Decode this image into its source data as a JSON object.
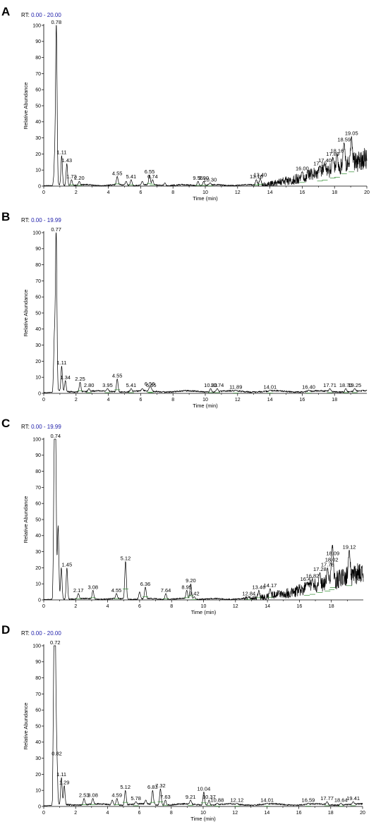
{
  "chart_data": [
    {
      "type": "line",
      "panel_label": "A",
      "rt_prefix": "RT: ",
      "rt_range": "0.00 - 20.00",
      "xlabel": "Time (min)",
      "ylabel": "Relative Abundance",
      "xlim": [
        0,
        20
      ],
      "ylim": [
        0,
        100
      ],
      "x_ticks": [
        0,
        2,
        4,
        6,
        8,
        10,
        12,
        14,
        16,
        18,
        20
      ],
      "y_ticks": [
        0,
        10,
        20,
        30,
        40,
        50,
        60,
        70,
        80,
        90,
        100
      ],
      "baseline": {
        "type": "rising",
        "start": 13,
        "level": 17
      },
      "peaks": [
        {
          "x": 0.68,
          "y": 17
        },
        {
          "x": 0.78,
          "y": 100
        },
        {
          "x": 1.11,
          "y": 19
        },
        {
          "x": 1.43,
          "y": 14
        },
        {
          "x": 1.72,
          "y": 4
        },
        {
          "x": 2.2,
          "y": 3
        },
        {
          "x": 4.55,
          "y": 6
        },
        {
          "x": 5.1,
          "y": 3
        },
        {
          "x": 5.41,
          "y": 4
        },
        {
          "x": 6.1,
          "y": 3
        },
        {
          "x": 6.55,
          "y": 7
        },
        {
          "x": 6.74,
          "y": 4
        },
        {
          "x": 7.5,
          "y": 2
        },
        {
          "x": 9.55,
          "y": 3
        },
        {
          "x": 9.9,
          "y": 3
        },
        {
          "x": 10.3,
          "y": 2
        },
        {
          "x": 13.16,
          "y": 4
        },
        {
          "x": 13.4,
          "y": 5
        },
        {
          "x": 16.0,
          "y": 9
        },
        {
          "x": 17.1,
          "y": 12
        },
        {
          "x": 17.4,
          "y": 14
        },
        {
          "x": 17.89,
          "y": 18
        },
        {
          "x": 18.16,
          "y": 20
        },
        {
          "x": 18.59,
          "y": 27
        },
        {
          "x": 19.05,
          "y": 31
        }
      ],
      "labels": [
        {
          "x": 0.78,
          "y": 100,
          "text": "0.78"
        },
        {
          "x": 1.11,
          "y": 19,
          "text": "1.11"
        },
        {
          "x": 1.43,
          "y": 14,
          "text": "1.43"
        },
        {
          "x": 1.72,
          "y": 4,
          "text": "1.72"
        },
        {
          "x": 2.2,
          "y": 3,
          "text": "2.20"
        },
        {
          "x": 4.55,
          "y": 6,
          "text": "4.55"
        },
        {
          "x": 5.41,
          "y": 4,
          "text": "5.41"
        },
        {
          "x": 6.55,
          "y": 7,
          "text": "6.55"
        },
        {
          "x": 6.74,
          "y": 4,
          "text": "6.74"
        },
        {
          "x": 9.55,
          "y": 3,
          "text": "9.55"
        },
        {
          "x": 9.9,
          "y": 3,
          "text": "9.90"
        },
        {
          "x": 10.3,
          "y": 2,
          "text": "10.30"
        },
        {
          "x": 13.16,
          "y": 4,
          "text": "13.16"
        },
        {
          "x": 13.4,
          "y": 5,
          "text": "13.40"
        },
        {
          "x": 16.0,
          "y": 9,
          "text": "16.00"
        },
        {
          "x": 17.1,
          "y": 12,
          "text": "17.10"
        },
        {
          "x": 17.4,
          "y": 14,
          "text": "17.40"
        },
        {
          "x": 17.89,
          "y": 18,
          "text": "17.89"
        },
        {
          "x": 18.16,
          "y": 20,
          "text": "18.16"
        },
        {
          "x": 18.59,
          "y": 27,
          "text": "18.59"
        },
        {
          "x": 19.05,
          "y": 31,
          "text": "19.05"
        }
      ]
    },
    {
      "type": "line",
      "panel_label": "B",
      "rt_prefix": "RT: ",
      "rt_range": "0.00 - 19.99",
      "xlabel": "Time (min)",
      "ylabel": "Relative Abundance",
      "xlim": [
        0,
        20
      ],
      "ylim": [
        0,
        100
      ],
      "x_ticks": [
        0,
        2,
        4,
        6,
        8,
        10,
        12,
        14,
        16,
        18
      ],
      "y_ticks": [
        0,
        10,
        20,
        30,
        40,
        50,
        60,
        70,
        80,
        90,
        100
      ],
      "baseline": {
        "type": "flat",
        "level": 2
      },
      "peaks": [
        {
          "x": 0.66,
          "y": 34
        },
        {
          "x": 0.77,
          "y": 100
        },
        {
          "x": 1.11,
          "y": 17
        },
        {
          "x": 1.34,
          "y": 8
        },
        {
          "x": 2.25,
          "y": 7
        },
        {
          "x": 2.8,
          "y": 3
        },
        {
          "x": 3.95,
          "y": 3
        },
        {
          "x": 4.55,
          "y": 9
        },
        {
          "x": 5.41,
          "y": 3
        },
        {
          "x": 6.1,
          "y": 3
        },
        {
          "x": 6.56,
          "y": 4
        },
        {
          "x": 6.65,
          "y": 3
        },
        {
          "x": 10.33,
          "y": 3
        },
        {
          "x": 10.74,
          "y": 3
        },
        {
          "x": 11.89,
          "y": 2
        },
        {
          "x": 14.01,
          "y": 2
        },
        {
          "x": 16.4,
          "y": 2
        },
        {
          "x": 17.71,
          "y": 3
        },
        {
          "x": 18.7,
          "y": 3
        },
        {
          "x": 19.25,
          "y": 3
        }
      ],
      "labels": [
        {
          "x": 0.77,
          "y": 100,
          "text": "0.77"
        },
        {
          "x": 1.11,
          "y": 17,
          "text": "1.11"
        },
        {
          "x": 1.34,
          "y": 8,
          "text": "1.34"
        },
        {
          "x": 2.25,
          "y": 7,
          "text": "2.25"
        },
        {
          "x": 2.8,
          "y": 3,
          "text": "2.80"
        },
        {
          "x": 3.95,
          "y": 3,
          "text": "3.95"
        },
        {
          "x": 4.55,
          "y": 9,
          "text": "4.55"
        },
        {
          "x": 5.41,
          "y": 3,
          "text": "5.41"
        },
        {
          "x": 6.56,
          "y": 4,
          "text": "6.56"
        },
        {
          "x": 6.65,
          "y": 3,
          "text": "6.65"
        },
        {
          "x": 10.33,
          "y": 3,
          "text": "10.33"
        },
        {
          "x": 10.74,
          "y": 3,
          "text": "10.74"
        },
        {
          "x": 11.89,
          "y": 2,
          "text": "11.89"
        },
        {
          "x": 14.01,
          "y": 2,
          "text": "14.01"
        },
        {
          "x": 16.4,
          "y": 2,
          "text": "16.40"
        },
        {
          "x": 17.71,
          "y": 3,
          "text": "17.71"
        },
        {
          "x": 18.7,
          "y": 3,
          "text": "18.70"
        },
        {
          "x": 19.25,
          "y": 3,
          "text": "19.25"
        }
      ]
    },
    {
      "type": "line",
      "panel_label": "C",
      "rt_prefix": "RT: ",
      "rt_range": "0.00 - 19.99",
      "xlabel": "Time (min)",
      "ylabel": "Relative Abundance",
      "xlim": [
        0,
        20
      ],
      "ylim": [
        0,
        100
      ],
      "x_ticks": [
        0,
        2,
        4,
        6,
        8,
        10,
        12,
        14,
        16,
        18
      ],
      "y_ticks": [
        0,
        10,
        20,
        30,
        40,
        50,
        60,
        70,
        80,
        90,
        100
      ],
      "baseline": {
        "type": "rising",
        "start": 12.5,
        "level": 17
      },
      "peaks": [
        {
          "x": 0.66,
          "y": 85
        },
        {
          "x": 0.74,
          "y": 100
        },
        {
          "x": 0.9,
          "y": 46
        },
        {
          "x": 1.1,
          "y": 20
        },
        {
          "x": 1.45,
          "y": 20
        },
        {
          "x": 2.17,
          "y": 4
        },
        {
          "x": 3.08,
          "y": 6
        },
        {
          "x": 4.55,
          "y": 4
        },
        {
          "x": 5.12,
          "y": 24
        },
        {
          "x": 6.0,
          "y": 5
        },
        {
          "x": 6.36,
          "y": 8
        },
        {
          "x": 7.64,
          "y": 4
        },
        {
          "x": 8.95,
          "y": 6
        },
        {
          "x": 9.2,
          "y": 10
        },
        {
          "x": 9.42,
          "y": 2
        },
        {
          "x": 12.84,
          "y": 2
        },
        {
          "x": 13.46,
          "y": 6
        },
        {
          "x": 14.17,
          "y": 7
        },
        {
          "x": 16.47,
          "y": 11
        },
        {
          "x": 16.82,
          "y": 13
        },
        {
          "x": 17.28,
          "y": 17
        },
        {
          "x": 17.76,
          "y": 20
        },
        {
          "x": 18.02,
          "y": 23
        },
        {
          "x": 18.09,
          "y": 27
        },
        {
          "x": 19.12,
          "y": 31
        }
      ],
      "labels": [
        {
          "x": 0.74,
          "y": 100,
          "text": "0.74"
        },
        {
          "x": 1.45,
          "y": 20,
          "text": "1.45"
        },
        {
          "x": 2.17,
          "y": 4,
          "text": "2.17"
        },
        {
          "x": 3.08,
          "y": 6,
          "text": "3.08"
        },
        {
          "x": 4.55,
          "y": 4,
          "text": "4.55"
        },
        {
          "x": 5.12,
          "y": 24,
          "text": "5.12"
        },
        {
          "x": 6.36,
          "y": 8,
          "text": "6.36"
        },
        {
          "x": 7.64,
          "y": 4,
          "text": "7.64"
        },
        {
          "x": 8.95,
          "y": 6,
          "text": "8.95"
        },
        {
          "x": 9.2,
          "y": 10,
          "text": "9.20"
        },
        {
          "x": 9.42,
          "y": 2,
          "text": "9.42"
        },
        {
          "x": 12.84,
          "y": 2,
          "text": "12.84"
        },
        {
          "x": 13.46,
          "y": 6,
          "text": "13.46"
        },
        {
          "x": 14.17,
          "y": 7,
          "text": "14.17"
        },
        {
          "x": 16.47,
          "y": 11,
          "text": "16.47"
        },
        {
          "x": 16.82,
          "y": 13,
          "text": "16.82"
        },
        {
          "x": 17.28,
          "y": 17,
          "text": "17.28"
        },
        {
          "x": 17.76,
          "y": 20,
          "text": "17.76"
        },
        {
          "x": 18.02,
          "y": 23,
          "text": "18.02"
        },
        {
          "x": 18.09,
          "y": 27,
          "text": "18.09"
        },
        {
          "x": 19.12,
          "y": 31,
          "text": "19.12"
        }
      ]
    },
    {
      "type": "line",
      "panel_label": "D",
      "rt_prefix": "RT: ",
      "rt_range": "0.00 - 20.00",
      "xlabel": "Time (min)",
      "ylabel": "Relative Abundance",
      "xlim": [
        0,
        20
      ],
      "ylim": [
        0,
        100
      ],
      "x_ticks": [
        0,
        2,
        4,
        6,
        8,
        10,
        12,
        14,
        16,
        18,
        20
      ],
      "y_ticks": [
        0,
        10,
        20,
        30,
        40,
        50,
        60,
        70,
        80,
        90,
        100
      ],
      "baseline": {
        "type": "flat",
        "level": 2
      },
      "peaks": [
        {
          "x": 0.64,
          "y": 86
        },
        {
          "x": 0.72,
          "y": 100
        },
        {
          "x": 0.82,
          "y": 31
        },
        {
          "x": 1.11,
          "y": 18
        },
        {
          "x": 1.29,
          "y": 13
        },
        {
          "x": 2.53,
          "y": 5
        },
        {
          "x": 3.08,
          "y": 5
        },
        {
          "x": 4.3,
          "y": 4
        },
        {
          "x": 4.59,
          "y": 5
        },
        {
          "x": 5.12,
          "y": 10
        },
        {
          "x": 5.78,
          "y": 3
        },
        {
          "x": 6.4,
          "y": 4
        },
        {
          "x": 6.83,
          "y": 10
        },
        {
          "x": 7.32,
          "y": 11
        },
        {
          "x": 7.63,
          "y": 4
        },
        {
          "x": 9.21,
          "y": 4
        },
        {
          "x": 10.04,
          "y": 9
        },
        {
          "x": 10.37,
          "y": 4
        },
        {
          "x": 10.88,
          "y": 2
        },
        {
          "x": 12.12,
          "y": 2
        },
        {
          "x": 14.01,
          "y": 2
        },
        {
          "x": 16.59,
          "y": 2
        },
        {
          "x": 17.77,
          "y": 3
        },
        {
          "x": 18.64,
          "y": 2
        },
        {
          "x": 19.41,
          "y": 3
        }
      ],
      "labels": [
        {
          "x": 0.72,
          "y": 100,
          "text": "0.72"
        },
        {
          "x": 0.82,
          "y": 31,
          "text": "0.82"
        },
        {
          "x": 1.11,
          "y": 18,
          "text": "1.11"
        },
        {
          "x": 1.29,
          "y": 13,
          "text": "1.29"
        },
        {
          "x": 2.53,
          "y": 5,
          "text": "2.53"
        },
        {
          "x": 3.08,
          "y": 5,
          "text": "3.08"
        },
        {
          "x": 4.59,
          "y": 5,
          "text": "4.59"
        },
        {
          "x": 5.12,
          "y": 10,
          "text": "5.12"
        },
        {
          "x": 5.78,
          "y": 3,
          "text": "5.78"
        },
        {
          "x": 6.83,
          "y": 10,
          "text": "6.83"
        },
        {
          "x": 7.32,
          "y": 11,
          "text": "7.32"
        },
        {
          "x": 7.63,
          "y": 4,
          "text": "7.63"
        },
        {
          "x": 9.21,
          "y": 4,
          "text": "9.21"
        },
        {
          "x": 10.04,
          "y": 9,
          "text": "10.04"
        },
        {
          "x": 10.37,
          "y": 4,
          "text": "10.37"
        },
        {
          "x": 10.88,
          "y": 2,
          "text": "10.88"
        },
        {
          "x": 12.12,
          "y": 2,
          "text": "12.12"
        },
        {
          "x": 14.01,
          "y": 2,
          "text": "14.01"
        },
        {
          "x": 16.59,
          "y": 2,
          "text": "16.59"
        },
        {
          "x": 17.77,
          "y": 3,
          "text": "17.77"
        },
        {
          "x": 18.64,
          "y": 2,
          "text": "18.64"
        },
        {
          "x": 19.41,
          "y": 3,
          "text": "19.41"
        }
      ]
    }
  ],
  "colors": {
    "trace": "#000000",
    "axis": "#000000",
    "rt_label": "#000000",
    "rt_value": "#1a1aa8",
    "baseline_marker": "#2e8b2e"
  }
}
